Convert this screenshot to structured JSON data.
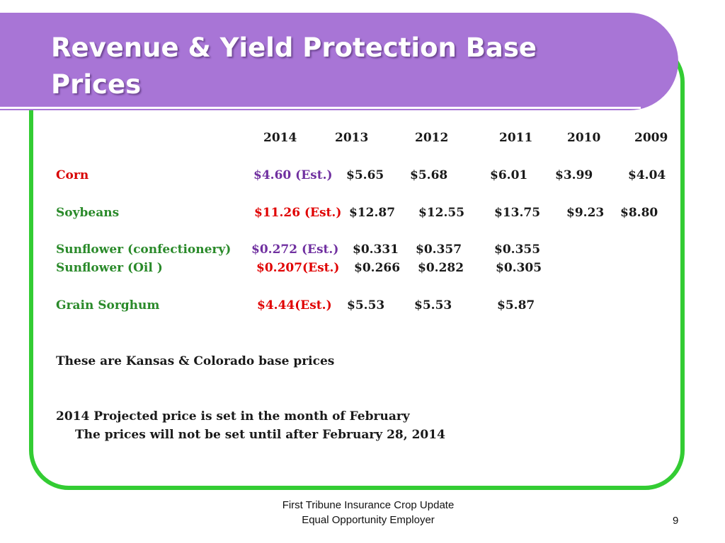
{
  "title": "Revenue & Yield Protection Base Prices",
  "years": [
    "2014",
    "2013",
    "2012",
    "2011",
    "2010",
    "2009"
  ],
  "rows": [
    {
      "crop": "Corn",
      "prices": [
        "$4.60 (Est.)",
        "$5.65",
        "$5.68",
        "$6.01",
        "$3.99",
        "$4.04"
      ]
    },
    {
      "crop": "Soybeans",
      "prices": [
        "$11.26 (Est.)",
        "$12.87",
        "$12.55",
        "$13.75",
        "$9.23",
        "$8.80"
      ]
    },
    {
      "crop": "Sunflower (confectionery)",
      "prices": [
        "$0.272 (Est.)",
        "$0.331",
        "$0.357",
        "$0.355"
      ]
    },
    {
      "crop": "Sunflower (Oil )",
      "prices": [
        "$0.207(Est.)",
        "$0.266",
        "$0.282",
        "$0.305"
      ]
    },
    {
      "crop": "Grain Sorghum",
      "prices": [
        "$4.44(Est.)",
        "$5.53",
        "$5.53",
        "$5.87"
      ]
    }
  ],
  "notes": {
    "line1": "These are Kansas & Colorado base prices",
    "line2": "2014 Projected price is set in the month of February",
    "line3": "The prices will not be set until after February 28, 2014"
  },
  "footer": {
    "line1": "First Tribune Insurance Crop Update",
    "line2": "Equal Opportunity Employer",
    "page_number": "9"
  },
  "colors": {
    "title_band": "#a875d6",
    "frame_border": "#33cc33",
    "crop_label": "#2a8a2a",
    "corn_label": "#d80000",
    "estimate_purple": "#7030a0",
    "estimate_red": "#e00000"
  }
}
